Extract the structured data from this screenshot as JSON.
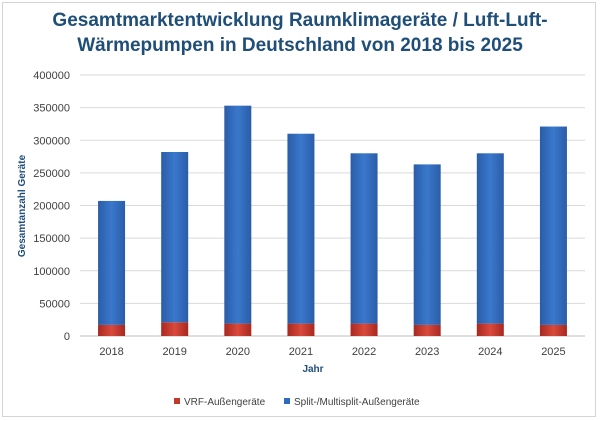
{
  "chart_data": {
    "type": "bar",
    "stacked": true,
    "title_line1": "Gesamtmarktentwicklung Raumklimageräte / Luft-Luft-",
    "title_line2": "Wärmepumpen in Deutschland von 2018 bis 2025",
    "xlabel": "Jahr",
    "ylabel": "Gesamtanzahl Geräte",
    "categories": [
      "2018",
      "2019",
      "2020",
      "2021",
      "2022",
      "2023",
      "2024",
      "2025"
    ],
    "ylim": [
      0,
      400000
    ],
    "yticks": [
      0,
      50000,
      100000,
      150000,
      200000,
      250000,
      300000,
      350000,
      400000
    ],
    "ytick_labels": [
      "0",
      "50000",
      "100000",
      "150000",
      "200000",
      "250000",
      "300000",
      "350000",
      "400000"
    ],
    "grid": "horizontal",
    "legend_position": "bottom",
    "series": [
      {
        "name": "VRF-Außengeräte",
        "color": "#c0392b",
        "values": [
          17000,
          21000,
          19000,
          19000,
          19000,
          17000,
          19000,
          17000
        ]
      },
      {
        "name": "Split-/Multisplit-Außengeräte",
        "color": "#2e6bbf",
        "values": [
          190000,
          261000,
          334000,
          291000,
          261000,
          246000,
          261000,
          304000
        ]
      }
    ]
  }
}
